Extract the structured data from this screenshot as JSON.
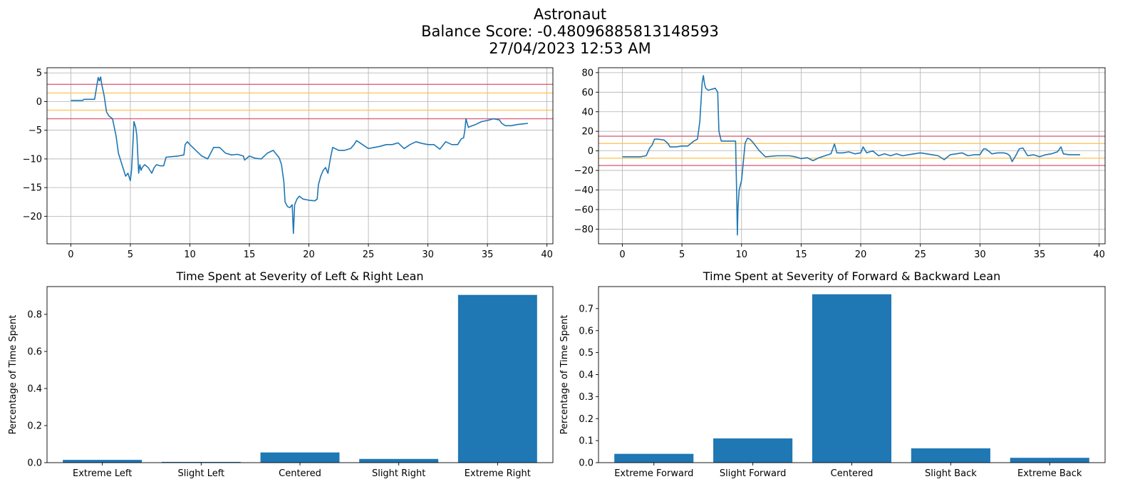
{
  "header": {
    "line1": "Astronaut",
    "line2": "Balance Score: -0.48096885813148593",
    "line3": "27/04/2023 12:53 AM"
  },
  "chart_data": [
    {
      "type": "line",
      "title": "",
      "xlabel": "",
      "ylabel": "",
      "xlim": [
        -2,
        40.5
      ],
      "ylim": [
        -24.8,
        5.9
      ],
      "xticks": [
        0,
        5,
        10,
        15,
        20,
        25,
        30,
        35,
        40
      ],
      "yticks": [
        -20,
        -15,
        -10,
        -5,
        0,
        5
      ],
      "grid": true,
      "threshold_lines": [
        {
          "y": 3,
          "color": "#d9536f"
        },
        {
          "y": 1.5,
          "color": "#ffc04d"
        },
        {
          "y": -1.5,
          "color": "#ffc04d"
        },
        {
          "y": -3,
          "color": "#d9536f"
        }
      ],
      "series": [
        {
          "color": "#1f77b4",
          "x": [
            0,
            1.0,
            1.1,
            2.0,
            2.2,
            2.3,
            2.4,
            2.5,
            2.6,
            2.8,
            3.0,
            3.2,
            3.5,
            3.8,
            4.0,
            4.3,
            4.6,
            4.8,
            5.0,
            5.1,
            5.2,
            5.3,
            5.45,
            5.55,
            5.7,
            5.8,
            5.9,
            6.0,
            6.2,
            6.5,
            6.8,
            7.0,
            7.2,
            7.5,
            7.8,
            8.0,
            8.5,
            9.0,
            9.5,
            9.6,
            9.8,
            10.0,
            10.5,
            11.0,
            11.5,
            12.0,
            12.5,
            13.0,
            13.5,
            14.0,
            14.5,
            14.6,
            15.0,
            15.5,
            16.0,
            16.5,
            17.0,
            17.5,
            17.7,
            17.9,
            18.0,
            18.2,
            18.4,
            18.6,
            18.7,
            18.8,
            19.0,
            19.2,
            19.5,
            20.0,
            20.5,
            20.7,
            20.8,
            21.0,
            21.2,
            21.4,
            21.6,
            21.8,
            22.0,
            22.5,
            23.0,
            23.5,
            23.8,
            24.0,
            24.5,
            25.0,
            25.5,
            26.0,
            26.5,
            27.0,
            27.5,
            28.0,
            28.5,
            29.0,
            29.5,
            30.0,
            30.5,
            31.0,
            31.5,
            32.0,
            32.5,
            32.8,
            33.0,
            33.1,
            33.2,
            33.3,
            33.4,
            33.6,
            34.0,
            34.5,
            35.0,
            35.5,
            36.0,
            36.2,
            36.5,
            37.0,
            37.5,
            38.0,
            38.4
          ],
          "y": [
            0.2,
            0.2,
            0.4,
            0.4,
            3.0,
            4.2,
            3.6,
            4.3,
            3.0,
            1.0,
            -1.8,
            -2.5,
            -3.0,
            -6.0,
            -9.0,
            -11.0,
            -13.0,
            -12.5,
            -13.8,
            -12.0,
            -8.0,
            -3.5,
            -4.5,
            -6.0,
            -12.5,
            -11.0,
            -12.0,
            -11.5,
            -11.0,
            -11.5,
            -12.5,
            -11.5,
            -11.0,
            -11.2,
            -11.2,
            -9.7,
            -9.6,
            -9.5,
            -9.3,
            -7.5,
            -7.0,
            -7.5,
            -8.5,
            -9.5,
            -10.0,
            -8.0,
            -8.0,
            -9.0,
            -9.3,
            -9.2,
            -9.5,
            -10.2,
            -9.5,
            -9.9,
            -10.0,
            -9.0,
            -8.5,
            -9.8,
            -11.0,
            -14.0,
            -17.5,
            -18.3,
            -18.5,
            -18.0,
            -23.0,
            -18.0,
            -17.0,
            -16.5,
            -17.0,
            -17.2,
            -17.3,
            -17.0,
            -14.5,
            -13.0,
            -12.0,
            -11.5,
            -12.5,
            -10.0,
            -8.0,
            -8.5,
            -8.5,
            -8.2,
            -7.5,
            -6.8,
            -7.5,
            -8.2,
            -8.0,
            -7.8,
            -7.5,
            -7.5,
            -7.2,
            -8.2,
            -7.5,
            -7.0,
            -7.3,
            -7.5,
            -7.5,
            -8.3,
            -7.0,
            -7.5,
            -7.5,
            -6.5,
            -6.3,
            -5.0,
            -3.0,
            -3.8,
            -4.5,
            -4.3,
            -4.0,
            -3.5,
            -3.3,
            -3.0,
            -3.2,
            -3.8,
            -4.2,
            -4.2,
            -4.0,
            -3.9,
            -3.8
          ]
        }
      ]
    },
    {
      "type": "line",
      "title": "",
      "xlabel": "",
      "ylabel": "",
      "xlim": [
        -2,
        40.5
      ],
      "ylim": [
        -95,
        85
      ],
      "xticks": [
        0,
        5,
        10,
        15,
        20,
        25,
        30,
        35,
        40
      ],
      "yticks": [
        -80,
        -60,
        -40,
        -20,
        0,
        20,
        40,
        60,
        80
      ],
      "grid": true,
      "threshold_lines": [
        {
          "y": 15,
          "color": "#d9536f"
        },
        {
          "y": 7.5,
          "color": "#ffc04d"
        },
        {
          "y": -7.5,
          "color": "#ffc04d"
        },
        {
          "y": -15,
          "color": "#d9536f"
        }
      ],
      "series": [
        {
          "color": "#1f77b4",
          "x": [
            0,
            1.0,
            1.5,
            2.0,
            2.3,
            2.5,
            2.7,
            3.0,
            3.5,
            3.8,
            4.0,
            4.5,
            5.0,
            5.5,
            6.0,
            6.3,
            6.5,
            6.7,
            6.8,
            6.9,
            7.0,
            7.2,
            7.5,
            7.8,
            8.0,
            8.1,
            8.3,
            8.5,
            9.0,
            9.5,
            9.6,
            9.65,
            9.7,
            9.8,
            10.0,
            10.3,
            10.5,
            10.7,
            11.0,
            11.5,
            12.0,
            13.0,
            14.0,
            14.5,
            15.0,
            15.5,
            16.0,
            16.5,
            17.0,
            17.5,
            17.8,
            18.0,
            18.5,
            19.0,
            19.5,
            20.0,
            20.2,
            20.5,
            21.0,
            21.5,
            22.0,
            22.5,
            23.0,
            23.5,
            24.0,
            25.0,
            26.0,
            26.5,
            27.0,
            27.5,
            28.0,
            28.5,
            29.0,
            29.5,
            30.0,
            30.3,
            30.5,
            31.0,
            31.5,
            32.0,
            32.3,
            32.5,
            32.7,
            33.0,
            33.3,
            33.6,
            34.0,
            34.5,
            35.0,
            35.5,
            36.0,
            36.5,
            36.8,
            37.0,
            37.5,
            38.4
          ],
          "y": [
            -6,
            -6,
            -6,
            -5,
            3,
            6,
            12,
            12,
            11,
            8,
            4,
            4,
            5,
            5,
            10,
            12,
            30,
            70,
            77,
            68,
            64,
            62,
            63,
            64,
            60,
            20,
            10,
            10,
            10,
            10,
            -50,
            -86,
            -60,
            -40,
            -30,
            8,
            13,
            12,
            8,
            0,
            -6,
            -5,
            -5,
            -6,
            -8,
            -7,
            -10,
            -7,
            -5,
            -3,
            7,
            -2,
            -2,
            -1,
            -3,
            -2,
            4,
            -2,
            0,
            -5,
            -3,
            -5,
            -3,
            -5,
            -4,
            -2,
            -4,
            -5,
            -9,
            -4,
            -3,
            -2,
            -5,
            -4,
            -4,
            2,
            2,
            -3,
            -2,
            -2,
            -3,
            -5,
            -11,
            -5,
            2,
            3,
            -5,
            -4,
            -6,
            -4,
            -3,
            -1,
            4,
            -3,
            -4,
            -4
          ]
        }
      ]
    },
    {
      "type": "bar",
      "title": "Time Spent at Severity of Left & Right Lean",
      "xlabel": "",
      "ylabel": "Percentage of Time Spent",
      "categories": [
        "Extreme Left",
        "Slight Left",
        "Centered",
        "Slight Right",
        "Extreme Right"
      ],
      "values": [
        0.015,
        0.004,
        0.055,
        0.02,
        0.905
      ],
      "ylim": [
        0,
        0.95
      ],
      "yticks": [
        0.0,
        0.2,
        0.4,
        0.6,
        0.8
      ],
      "ytick_labels": [
        "0.0",
        "0.2",
        "0.4",
        "0.6",
        "0.8"
      ],
      "color": "#1f77b4",
      "grid": false
    },
    {
      "type": "bar",
      "title": "Time Spent at Severity of Forward & Backward Lean",
      "xlabel": "",
      "ylabel": "Percentage of Time Spent",
      "categories": [
        "Extreme Forward",
        "Slight Forward",
        "Centered",
        "Slight Back",
        "Extreme Back"
      ],
      "values": [
        0.04,
        0.11,
        0.765,
        0.065,
        0.022
      ],
      "ylim": [
        0,
        0.8
      ],
      "yticks": [
        0.0,
        0.1,
        0.2,
        0.3,
        0.4,
        0.5,
        0.6,
        0.7
      ],
      "ytick_labels": [
        "0.0",
        "0.1",
        "0.2",
        "0.3",
        "0.4",
        "0.5",
        "0.6",
        "0.7"
      ],
      "color": "#1f77b4",
      "grid": false
    }
  ]
}
